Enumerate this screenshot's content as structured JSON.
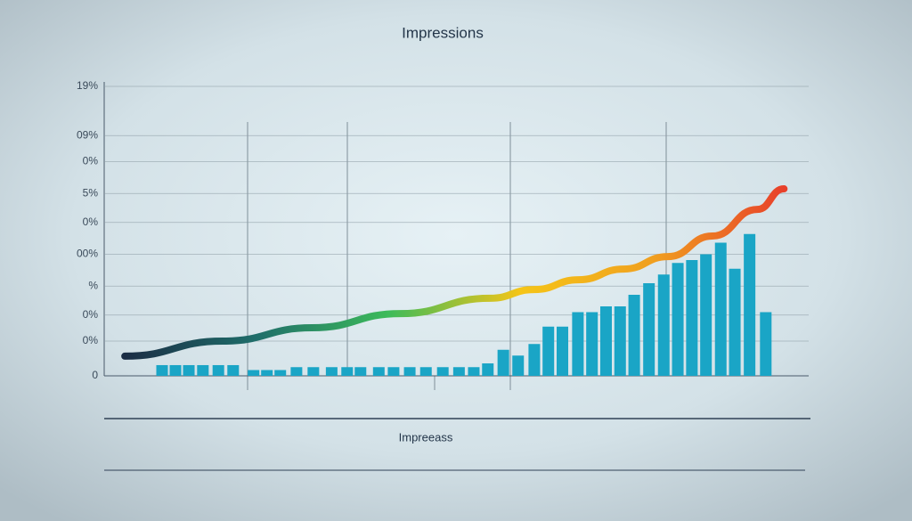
{
  "chart_data": {
    "type": "bar-line",
    "title": "Impressions",
    "x_label": "Impreeass",
    "xlim": [
      0,
      100
    ],
    "ylim": [
      0,
      100
    ],
    "yticks": [
      {
        "value": 100,
        "label": "19%"
      },
      {
        "value": 83,
        "label": "09%"
      },
      {
        "value": 74,
        "label": "0%"
      },
      {
        "value": 63,
        "label": "5%"
      },
      {
        "value": 53,
        "label": "0%"
      },
      {
        "value": 42,
        "label": "00%"
      },
      {
        "value": 31,
        "label": "%"
      },
      {
        "value": 21,
        "label": "0%"
      },
      {
        "value": 12,
        "label": "0%"
      },
      0
    ],
    "grid": true,
    "series": [
      {
        "type": "bar",
        "color": "#1aa5c6",
        "x": [
          8.1,
          10,
          11.9,
          13.9,
          16.1,
          18.2,
          21.1,
          23,
          24.9,
          27.2,
          29.6,
          32.2,
          34.4,
          36.3,
          38.9,
          41,
          43.3,
          45.6,
          48,
          50.3,
          52.4,
          54.4,
          56.6,
          58.7,
          61,
          63,
          65,
          67.2,
          69.2,
          71.2,
          73.2,
          75.2,
          77.3,
          79.4,
          81.4,
          83.4,
          85.4,
          87.5,
          89.5,
          91.6,
          93.9
        ],
        "values": [
          3.7,
          3.7,
          3.7,
          3.7,
          3.7,
          3.7,
          2,
          2,
          2,
          3,
          3,
          3,
          3,
          3,
          3,
          3,
          3,
          3,
          3,
          3,
          3,
          4.3,
          9,
          7,
          11,
          17,
          17,
          22,
          22,
          24,
          24,
          28,
          32,
          35,
          39,
          40,
          42,
          46,
          37,
          49,
          22
        ]
      },
      {
        "type": "line",
        "colors": [
          "#1b2d45",
          "#1f6e6a",
          "#3dbb5a",
          "#f5c518",
          "#f0a020",
          "#e8402a"
        ],
        "x": [
          2.8,
          16.7,
          29.4,
          42,
          54.7,
          61,
          67.3,
          73.7,
          80,
          86.3,
          92.7,
          96.5
        ],
        "values": [
          6.8,
          12,
          16.6,
          21.5,
          26.8,
          29.8,
          33.2,
          36.9,
          41.2,
          48.3,
          57.5,
          64.6
        ]
      }
    ]
  }
}
